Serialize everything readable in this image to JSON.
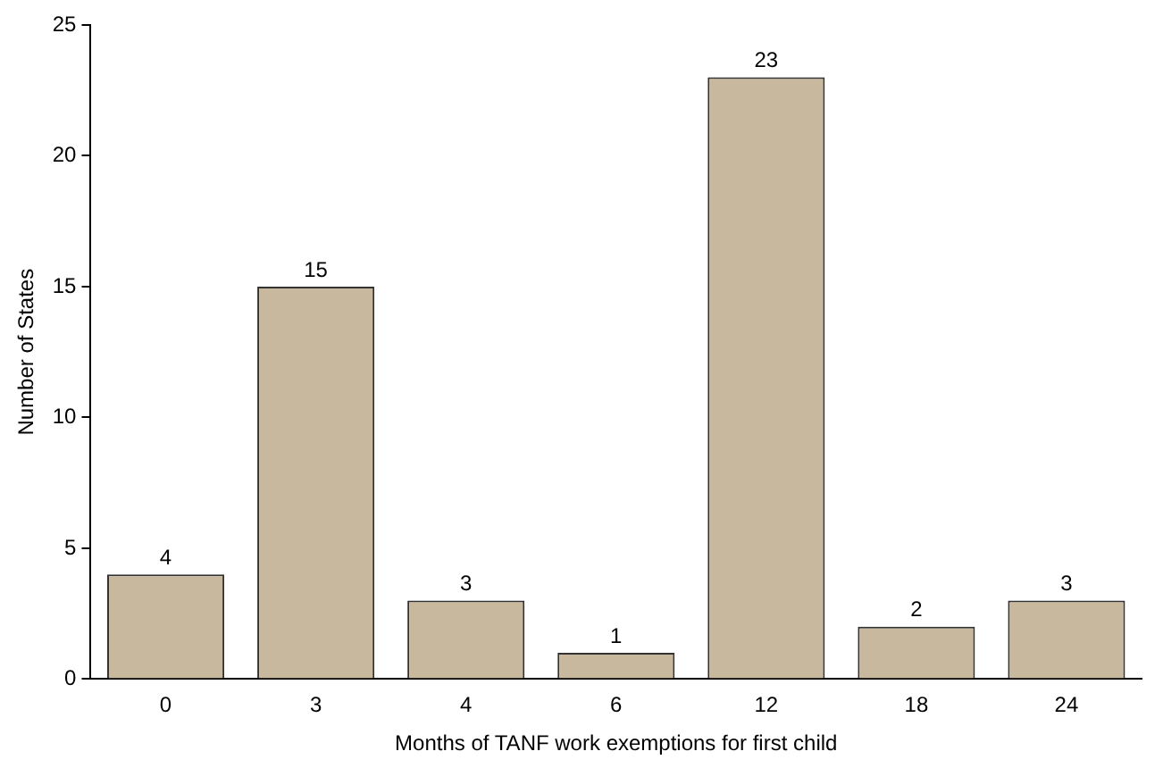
{
  "chart_data": {
    "type": "bar",
    "xlabel": "Months of TANF work exemptions for first child",
    "ylabel": "Number of States",
    "categories": [
      "0",
      "3",
      "4",
      "6",
      "12",
      "18",
      "24"
    ],
    "values": [
      4,
      15,
      3,
      1,
      23,
      2,
      3
    ],
    "color": "#c8b89e",
    "ylim": [
      0,
      25
    ],
    "yticks": [
      0,
      5,
      10,
      15,
      20,
      25
    ],
    "grid": false,
    "legend": false,
    "data_labels": true
  }
}
